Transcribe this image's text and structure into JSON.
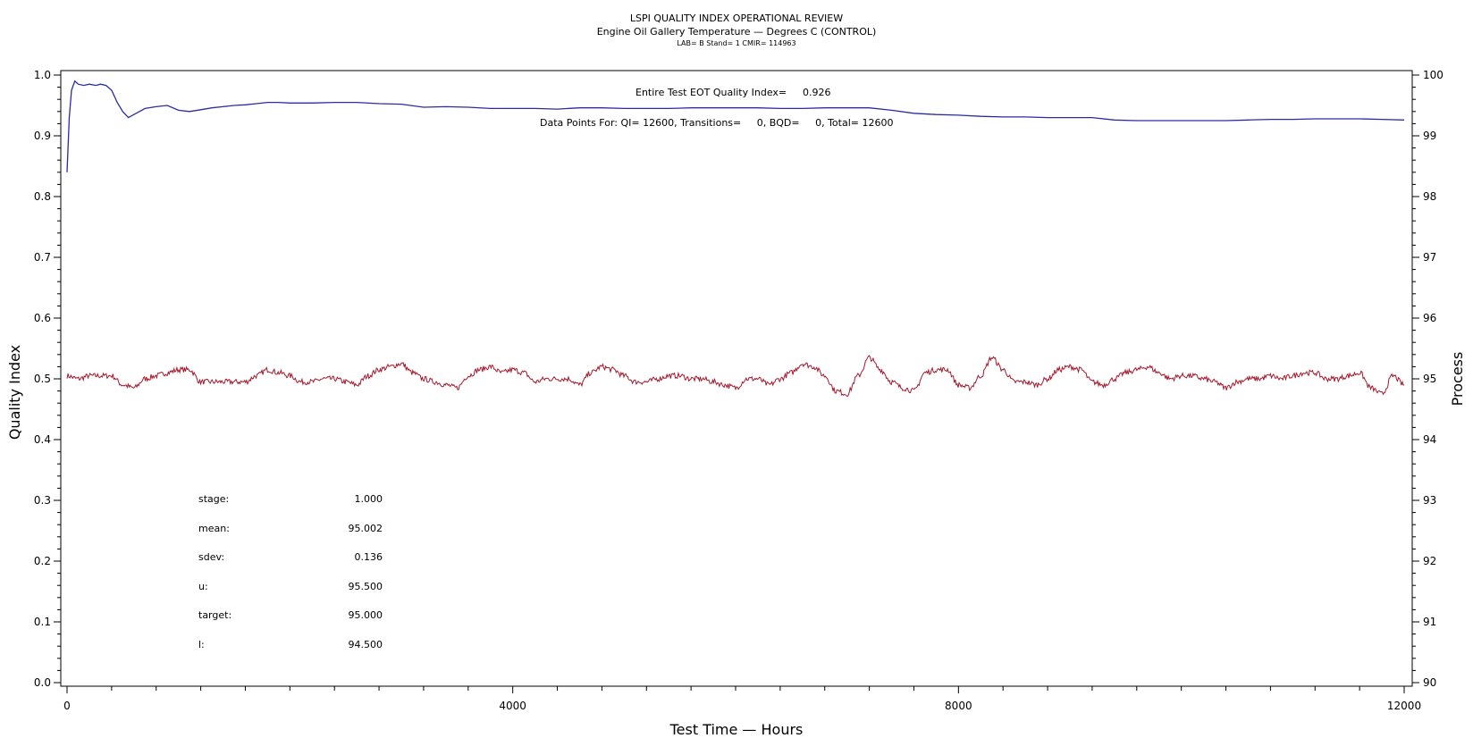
{
  "header": {
    "title": "LSPI QUALITY INDEX OPERATIONAL REVIEW",
    "subtitle": "Engine Oil Gallery Temperature — Degrees C (CONTROL)",
    "info": "LAB= B Stand= 1 CMIR= 114963"
  },
  "chart_data": {
    "type": "line",
    "xlabel": "Test Time — Hours",
    "ylabel_left": "Quality Index",
    "ylabel_right": "Process",
    "xlim": [
      0,
      12000
    ],
    "ylim_left": [
      0.0,
      1.0
    ],
    "ylim_right": [
      90,
      100
    ],
    "x_ticks": [
      "0",
      "4000",
      "8000",
      "12000"
    ],
    "y_left_ticks": [
      "0.0",
      "0.1",
      "0.2",
      "0.3",
      "0.4",
      "0.5",
      "0.6",
      "0.7",
      "0.8",
      "0.9",
      "1.0"
    ],
    "y_right_ticks": [
      "90",
      "91",
      "92",
      "93",
      "94",
      "95",
      "96",
      "97",
      "98",
      "99",
      "100"
    ],
    "colors": {
      "quality_index": "#2b2ba6",
      "process": "#a3182c"
    },
    "series": [
      {
        "axis": "left",
        "x": [
          0,
          20,
          40,
          70,
          100,
          150,
          200,
          260,
          300,
          350,
          400,
          450,
          500,
          550,
          600,
          650,
          700,
          800,
          900,
          1000,
          1100,
          1200,
          1300,
          1400,
          1500,
          1600,
          1700,
          1800,
          1900,
          2000,
          2200,
          2400,
          2600,
          2800,
          3000,
          3200,
          3400,
          3600,
          3800,
          4000,
          4200,
          4400,
          4600,
          4800,
          5000,
          5200,
          5400,
          5600,
          5800,
          6000,
          6200,
          6400,
          6600,
          6800,
          7000,
          7200,
          7400,
          7600,
          7800,
          8000,
          8200,
          8400,
          8600,
          8800,
          9000,
          9200,
          9400,
          9600,
          9800,
          10000,
          10200,
          10400,
          10600,
          10800,
          11000,
          11200,
          11400,
          11600,
          11800,
          12000
        ],
        "values": [
          0.84,
          0.93,
          0.975,
          0.99,
          0.985,
          0.983,
          0.985,
          0.983,
          0.985,
          0.983,
          0.975,
          0.955,
          0.94,
          0.93,
          0.935,
          0.94,
          0.945,
          0.948,
          0.95,
          0.942,
          0.94,
          0.943,
          0.946,
          0.948,
          0.95,
          0.951,
          0.953,
          0.955,
          0.955,
          0.954,
          0.954,
          0.955,
          0.955,
          0.953,
          0.952,
          0.947,
          0.948,
          0.947,
          0.945,
          0.945,
          0.945,
          0.944,
          0.946,
          0.946,
          0.945,
          0.945,
          0.945,
          0.946,
          0.946,
          0.946,
          0.946,
          0.945,
          0.945,
          0.946,
          0.946,
          0.946,
          0.942,
          0.937,
          0.935,
          0.934,
          0.932,
          0.931,
          0.931,
          0.93,
          0.93,
          0.93,
          0.926,
          0.925,
          0.925,
          0.925,
          0.925,
          0.925,
          0.926,
          0.927,
          0.927,
          0.928,
          0.928,
          0.928,
          0.927,
          0.926
        ]
      },
      {
        "axis": "right",
        "x": [
          0,
          100,
          200,
          300,
          400,
          500,
          600,
          700,
          800,
          900,
          1000,
          1100,
          1200,
          1300,
          1400,
          1500,
          1600,
          1700,
          1800,
          1900,
          2000,
          2100,
          2200,
          2300,
          2400,
          2500,
          2600,
          2700,
          2800,
          2900,
          3000,
          3100,
          3200,
          3300,
          3400,
          3500,
          3600,
          3700,
          3800,
          3900,
          4000,
          4100,
          4200,
          4300,
          4400,
          4500,
          4600,
          4700,
          4800,
          4900,
          5000,
          5100,
          5200,
          5300,
          5400,
          5500,
          5600,
          5700,
          5800,
          5900,
          6000,
          6100,
          6200,
          6300,
          6400,
          6500,
          6600,
          6700,
          6800,
          6900,
          7000,
          7100,
          7200,
          7300,
          7400,
          7500,
          7600,
          7700,
          7800,
          7900,
          8000,
          8100,
          8200,
          8300,
          8400,
          8500,
          8600,
          8700,
          8800,
          8900,
          9000,
          9100,
          9200,
          9300,
          9400,
          9500,
          9600,
          9700,
          9800,
          9900,
          10000,
          10100,
          10200,
          10300,
          10400,
          10500,
          10600,
          10700,
          10800,
          10900,
          11000,
          11100,
          11200,
          11300,
          11400,
          11500,
          11600,
          11700,
          11800,
          11900,
          12000
        ],
        "values": [
          95.05,
          95.0,
          95.05,
          95.05,
          95.05,
          94.9,
          94.85,
          95.0,
          95.05,
          95.1,
          95.15,
          95.15,
          94.95,
          94.95,
          94.95,
          94.95,
          94.95,
          95.05,
          95.15,
          95.1,
          95.05,
          94.95,
          94.95,
          95.0,
          95.0,
          94.95,
          94.9,
          95.05,
          95.15,
          95.2,
          95.25,
          95.1,
          95.0,
          94.95,
          94.9,
          94.85,
          95.05,
          95.15,
          95.2,
          95.1,
          95.15,
          95.1,
          94.95,
          95.0,
          95.0,
          95.0,
          94.9,
          95.1,
          95.2,
          95.15,
          95.05,
          94.95,
          94.95,
          95.0,
          95.05,
          95.05,
          95.0,
          95.0,
          94.95,
          94.9,
          94.85,
          95.0,
          95.0,
          94.9,
          95.0,
          95.1,
          95.25,
          95.2,
          95.05,
          94.8,
          94.75,
          95.05,
          95.35,
          95.15,
          94.95,
          94.85,
          94.8,
          95.1,
          95.15,
          95.15,
          94.9,
          94.85,
          95.05,
          95.35,
          95.15,
          94.95,
          94.95,
          94.9,
          95.0,
          95.15,
          95.2,
          95.15,
          94.95,
          94.9,
          95.0,
          95.1,
          95.15,
          95.2,
          95.1,
          95.0,
          95.05,
          95.05,
          95.0,
          94.95,
          94.85,
          94.95,
          95.0,
          95.0,
          95.05,
          95.0,
          95.05,
          95.1,
          95.1,
          95.0,
          95.0,
          95.05,
          95.1,
          94.85,
          94.75,
          95.05,
          94.9
        ]
      }
    ]
  },
  "annotations": {
    "eot_label": "Entire Test EOT Quality Index=",
    "eot_value": "0.926",
    "data_points": "Data Points For: QI= 12600, Transitions=     0, BQD=     0, Total= 12600"
  },
  "stats": [
    {
      "label": "stage:",
      "value": "1.000"
    },
    {
      "label": "mean:",
      "value": "95.002"
    },
    {
      "label": "sdev:",
      "value": "0.136"
    },
    {
      "label": "u:",
      "value": "95.500"
    },
    {
      "label": "target:",
      "value": "95.000"
    },
    {
      "label": "l:",
      "value": "94.500"
    }
  ]
}
